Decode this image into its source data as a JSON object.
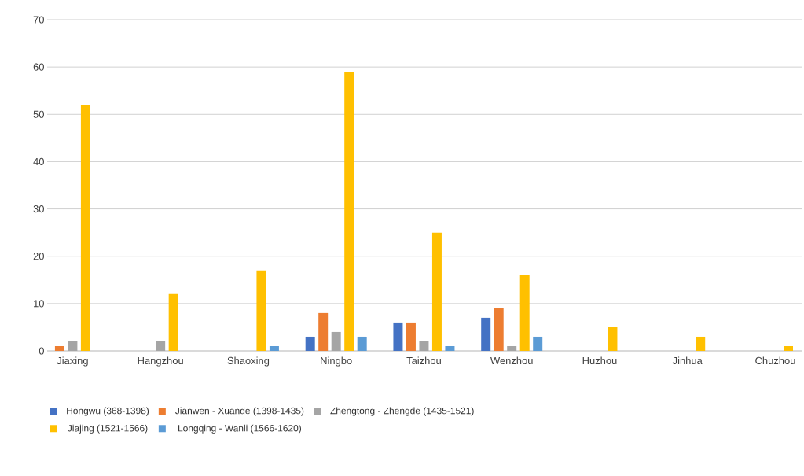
{
  "chart_data": {
    "type": "bar",
    "categories": [
      "Jiaxing",
      "Hangzhou",
      "Shaoxing",
      "Ningbo",
      "Taizhou",
      "Wenzhou",
      "Huzhou",
      "Jinhua",
      "Chuzhou"
    ],
    "series": [
      {
        "name": "Hongwu (368-1398)",
        "color": "#4472c4",
        "values": [
          0,
          0,
          0,
          3,
          6,
          7,
          0,
          0,
          0
        ]
      },
      {
        "name": "Jianwen - Xuande (1398-1435)",
        "color": "#ed7d31",
        "values": [
          1,
          0,
          0,
          8,
          6,
          9,
          0,
          0,
          0
        ]
      },
      {
        "name": "Zhengtong - Zhengde (1435-1521)",
        "color": "#a5a5a5",
        "values": [
          2,
          2,
          0,
          4,
          2,
          1,
          0,
          0,
          0
        ]
      },
      {
        "name": "Jiajing (1521-1566)",
        "color": "#ffc000",
        "values": [
          52,
          12,
          17,
          59,
          25,
          16,
          5,
          3,
          1
        ]
      },
      {
        "name": "Longqing - Wanli (1566-1620)",
        "color": "#5b9bd5",
        "values": [
          0,
          0,
          1,
          3,
          1,
          3,
          0,
          0,
          0
        ]
      }
    ],
    "ylim": [
      0,
      70
    ],
    "yticks": [
      0,
      10,
      20,
      30,
      40,
      50,
      60,
      70
    ],
    "grid": "y",
    "legend": "bottom"
  }
}
